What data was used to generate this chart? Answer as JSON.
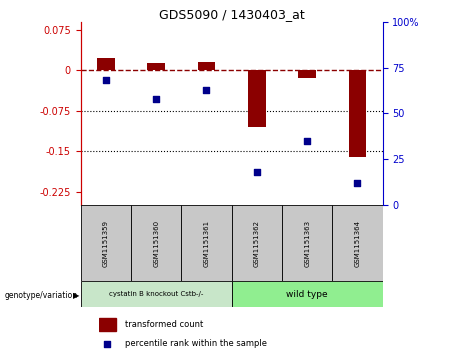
{
  "title": "GDS5090 / 1430403_at",
  "samples": [
    "GSM1151359",
    "GSM1151360",
    "GSM1151361",
    "GSM1151362",
    "GSM1151363",
    "GSM1151364"
  ],
  "red_values": [
    0.022,
    0.013,
    0.015,
    -0.105,
    -0.015,
    -0.16
  ],
  "blue_values_pct": [
    68,
    58,
    63,
    18,
    35,
    12
  ],
  "ylim_left": [
    -0.25,
    0.09
  ],
  "ylim_right": [
    0,
    100
  ],
  "yticks_left": [
    0.075,
    0,
    -0.075,
    -0.15,
    -0.225
  ],
  "yticks_right": [
    100,
    75,
    50,
    25,
    0
  ],
  "hlines": [
    -0.075,
    -0.15
  ],
  "group1_label": "cystatin B knockout Cstb-/-",
  "group2_label": "wild type",
  "group1_color": "#c8e6c9",
  "group2_color": "#90EE90",
  "bar_color": "#8B0000",
  "dot_color": "#00008B",
  "bar_width": 0.35,
  "legend_red": "transformed count",
  "legend_blue": "percentile rank within the sample",
  "genotype_label": "genotype/variation",
  "bg_color": "#ffffff",
  "plot_bg": "#ffffff",
  "tick_color_left": "#cc0000",
  "tick_color_right": "#0000cc",
  "sample_box_color": "#c8c8c8"
}
